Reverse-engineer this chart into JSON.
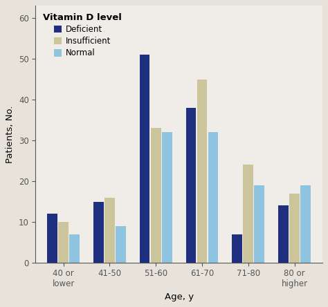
{
  "categories": [
    "40 or\nlower",
    "41-50",
    "51-60",
    "61-70",
    "71-80",
    "80 or\nhigher"
  ],
  "deficient": [
    12,
    15,
    51,
    38,
    7,
    14
  ],
  "insufficient": [
    10,
    16,
    33,
    45,
    24,
    17
  ],
  "normal": [
    7,
    9,
    32,
    32,
    19,
    19
  ],
  "color_deficient": "#1e2f80",
  "color_insufficient": "#ccc49a",
  "color_normal": "#8ec4e0",
  "legend_title": "Vitamin D level",
  "legend_labels": [
    "Deficient",
    "Insufficient",
    "Normal"
  ],
  "xlabel": "Age, y",
  "ylabel": "Patients, No.",
  "ylim": [
    0,
    63
  ],
  "yticks": [
    0,
    10,
    20,
    30,
    40,
    50,
    60
  ],
  "outer_bg": "#e8e3da",
  "plot_bg": "#f0ede8",
  "bar_width": 0.22,
  "figsize": [
    4.74,
    4.44
  ],
  "dpi": 100
}
